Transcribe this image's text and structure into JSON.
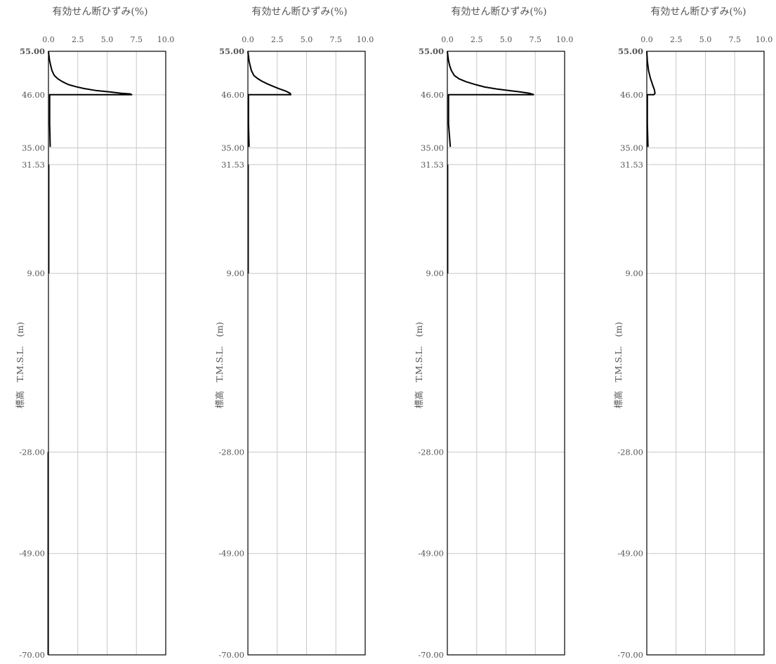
{
  "chart_data": [
    {
      "type": "line",
      "title": "有効せん断ひずみ(%)",
      "ylabel": "標高　T.M.S.L.　(m)",
      "xlim": [
        0,
        10
      ],
      "ylim": [
        -70,
        55
      ],
      "x_ticks": [
        "0.0",
        "2.5",
        "5.0",
        "7.5",
        "10.0"
      ],
      "y_ticks": [
        {
          "value": 55,
          "label": "55.00"
        },
        {
          "value": 46,
          "label": "46.00"
        },
        {
          "value": 35,
          "label": "35.00"
        },
        {
          "value": 31.53,
          "label": "31.53"
        },
        {
          "value": 9,
          "label": "9.00"
        },
        {
          "value": -28,
          "label": "-28.00"
        },
        {
          "value": -49,
          "label": "-49.00"
        },
        {
          "value": -70,
          "label": "-70.00"
        }
      ],
      "grid": true,
      "series": [
        {
          "points": [
            [
              0.0,
              55
            ],
            [
              0.05,
              54
            ],
            [
              0.1,
              53
            ],
            [
              0.2,
              52
            ],
            [
              0.3,
              51
            ],
            [
              0.5,
              50
            ],
            [
              0.8,
              49.3
            ],
            [
              1.2,
              48.7
            ],
            [
              1.7,
              48.1
            ],
            [
              2.3,
              47.7
            ],
            [
              3.0,
              47.3
            ],
            [
              4.0,
              46.9
            ],
            [
              5.2,
              46.6
            ],
            [
              6.2,
              46.3
            ],
            [
              7.0,
              46.15
            ],
            [
              7.1,
              46.0
            ],
            [
              0.1,
              46.0
            ],
            [
              0.1,
              40
            ],
            [
              0.15,
              35.2
            ]
          ]
        },
        {
          "points": [
            [
              -0.05,
              -28
            ],
            [
              -0.05,
              -70
            ]
          ]
        },
        {
          "points": [
            [
              0.05,
              31.53
            ],
            [
              0.05,
              9
            ]
          ]
        }
      ]
    },
    {
      "type": "line",
      "title": "有効せん断ひずみ(%)",
      "ylabel": "標高　T.M.S.L.　(m)",
      "xlim": [
        0,
        10
      ],
      "ylim": [
        -70,
        55
      ],
      "x_ticks": [
        "0.0",
        "2.5",
        "5.0",
        "7.5",
        "10.0"
      ],
      "y_ticks": [
        {
          "value": 55,
          "label": "55.00"
        },
        {
          "value": 46,
          "label": "46.00"
        },
        {
          "value": 35,
          "label": "35.00"
        },
        {
          "value": 31.53,
          "label": "31.53"
        },
        {
          "value": 9,
          "label": "9.00"
        },
        {
          "value": -28,
          "label": "-28.00"
        },
        {
          "value": -49,
          "label": "-49.00"
        },
        {
          "value": -70,
          "label": "-70.00"
        }
      ],
      "grid": true,
      "series": [
        {
          "points": [
            [
              0.0,
              55
            ],
            [
              0.05,
              54
            ],
            [
              0.1,
              53
            ],
            [
              0.2,
              52
            ],
            [
              0.3,
              51
            ],
            [
              0.5,
              50
            ],
            [
              0.8,
              49.4
            ],
            [
              1.2,
              48.8
            ],
            [
              1.7,
              48.2
            ],
            [
              2.2,
              47.7
            ],
            [
              2.7,
              47.2
            ],
            [
              3.2,
              46.8
            ],
            [
              3.6,
              46.3
            ],
            [
              3.65,
              46.0
            ],
            [
              0.05,
              46.0
            ],
            [
              0.05,
              40
            ],
            [
              0.1,
              35.2
            ]
          ]
        },
        {
          "points": [
            [
              0.05,
              31.53
            ],
            [
              0.05,
              9
            ]
          ]
        }
      ]
    },
    {
      "type": "line",
      "title": "有効せん断ひずみ(%)",
      "ylabel": "標高　T.M.S.L.　(m)",
      "xlim": [
        0,
        10
      ],
      "ylim": [
        -70,
        55
      ],
      "x_ticks": [
        "0.0",
        "2.5",
        "5.0",
        "7.5",
        "10.0"
      ],
      "y_ticks": [
        {
          "value": 55,
          "label": "55.00"
        },
        {
          "value": 46,
          "label": "46.00"
        },
        {
          "value": 35,
          "label": "35.00"
        },
        {
          "value": 31.53,
          "label": "31.53"
        },
        {
          "value": 9,
          "label": "9.00"
        },
        {
          "value": -28,
          "label": "-28.00"
        },
        {
          "value": -49,
          "label": "-49.00"
        },
        {
          "value": -70,
          "label": "-70.00"
        }
      ],
      "grid": true,
      "series": [
        {
          "points": [
            [
              0.0,
              55
            ],
            [
              0.05,
              54
            ],
            [
              0.1,
              53
            ],
            [
              0.2,
              52
            ],
            [
              0.35,
              51
            ],
            [
              0.6,
              50
            ],
            [
              1.0,
              49.3
            ],
            [
              1.6,
              48.7
            ],
            [
              2.4,
              48.1
            ],
            [
              3.2,
              47.6
            ],
            [
              4.2,
              47.2
            ],
            [
              5.2,
              46.9
            ],
            [
              6.2,
              46.6
            ],
            [
              7.0,
              46.3
            ],
            [
              7.3,
              46.1
            ],
            [
              7.35,
              46.0
            ],
            [
              0.1,
              46.0
            ],
            [
              0.1,
              40
            ],
            [
              0.25,
              35.2
            ]
          ]
        },
        {
          "points": [
            [
              0.05,
              31.53
            ],
            [
              0.05,
              9
            ]
          ]
        }
      ]
    },
    {
      "type": "line",
      "title": "有効せん断ひずみ(%)",
      "ylabel": "標高　T.M.S.L.　(m)",
      "xlim": [
        0,
        10
      ],
      "ylim": [
        -70,
        55
      ],
      "x_ticks": [
        "0.0",
        "2.5",
        "5.0",
        "7.5",
        "10.0"
      ],
      "y_ticks": [
        {
          "value": 55,
          "label": "55.00"
        },
        {
          "value": 46,
          "label": "46.00"
        },
        {
          "value": 35,
          "label": "35.00"
        },
        {
          "value": 31.53,
          "label": "31.53"
        },
        {
          "value": 9,
          "label": "9.00"
        },
        {
          "value": -28,
          "label": "-28.00"
        },
        {
          "value": -49,
          "label": "-49.00"
        },
        {
          "value": -70,
          "label": "-70.00"
        }
      ],
      "grid": true,
      "series": [
        {
          "points": [
            [
              0.0,
              55
            ],
            [
              0.05,
              53
            ],
            [
              0.15,
              51
            ],
            [
              0.3,
              49.5
            ],
            [
              0.5,
              48
            ],
            [
              0.65,
              47
            ],
            [
              0.7,
              46.3
            ],
            [
              0.6,
              46.0
            ],
            [
              0.05,
              46.0
            ],
            [
              0.05,
              40
            ],
            [
              0.1,
              35.2
            ]
          ]
        }
      ]
    }
  ]
}
